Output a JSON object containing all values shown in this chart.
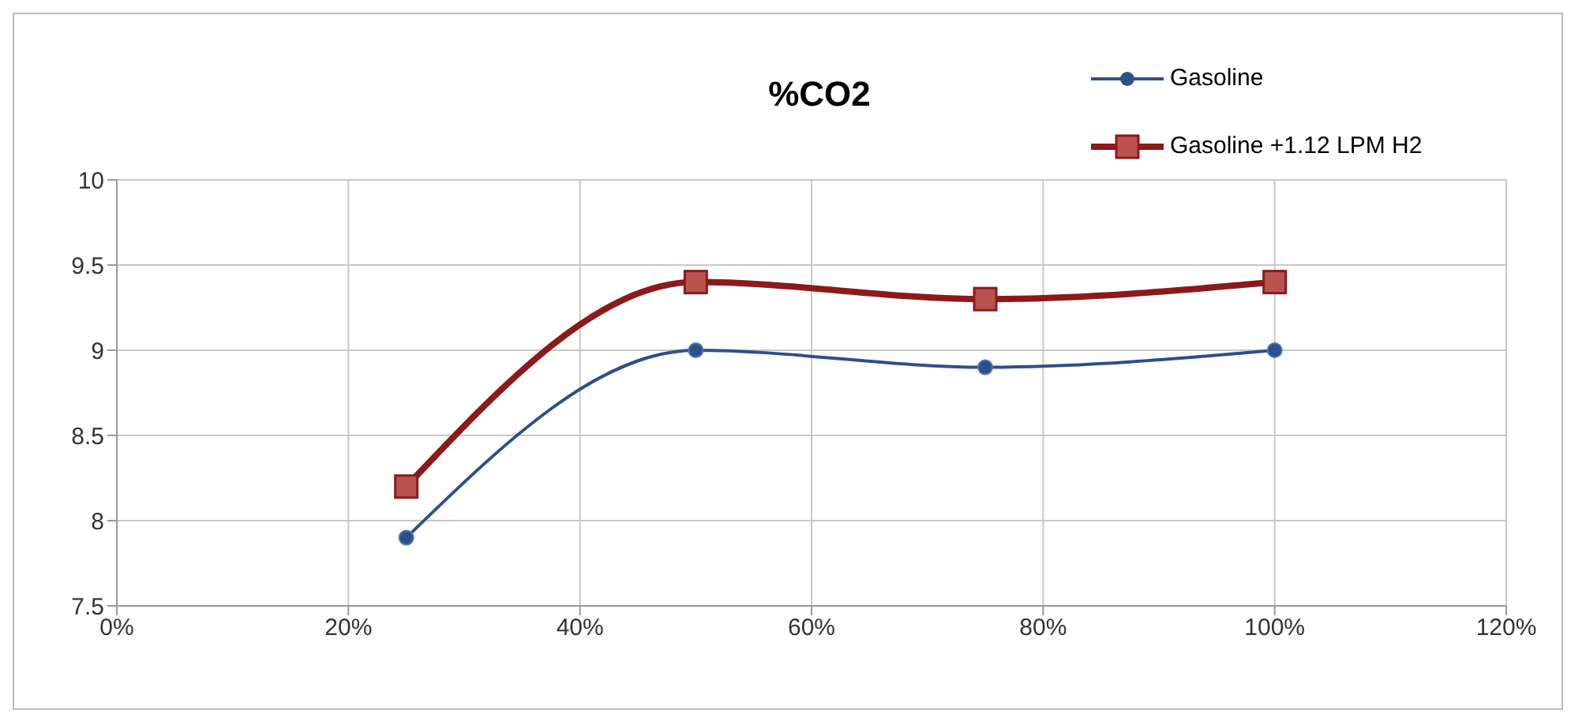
{
  "chart_data": {
    "type": "line",
    "title": "%CO2",
    "x": [
      25,
      50,
      75,
      100
    ],
    "series": [
      {
        "name": "Gasoline",
        "color": "#2e4f8a",
        "values": [
          7.9,
          9.0,
          8.9,
          9.0
        ],
        "marker": "circle"
      },
      {
        "name": "Gasoline +1.12 LPM H2",
        "color": "#8b1a1a",
        "values": [
          8.2,
          9.4,
          9.3,
          9.4
        ],
        "marker": "square"
      }
    ],
    "xlim": [
      0,
      120
    ],
    "xticks": [
      {
        "value": 0,
        "label": "0%"
      },
      {
        "value": 20,
        "label": "20%"
      },
      {
        "value": 40,
        "label": "40%"
      },
      {
        "value": 60,
        "label": "60%"
      },
      {
        "value": 80,
        "label": "80%"
      },
      {
        "value": 100,
        "label": "100%"
      },
      {
        "value": 120,
        "label": "120%"
      }
    ],
    "ylim": [
      7.5,
      10
    ],
    "yticks": [
      7.5,
      8,
      8.5,
      9,
      9.5,
      10
    ],
    "grid": true,
    "legend": "top right",
    "line_style": "solid"
  }
}
